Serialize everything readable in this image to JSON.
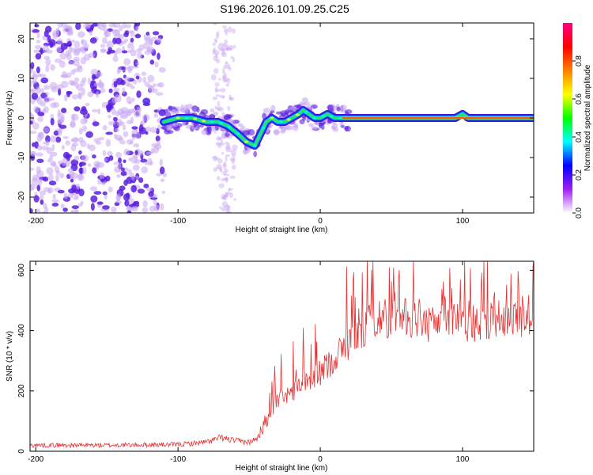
{
  "title": "S196.2026.101.09.25.C25",
  "colors": {
    "spectro_weak": "#c9a8f2",
    "spectro_strong": "#5a1fe0",
    "line": "#e53232"
  },
  "chart_data": [
    {
      "type": "heatmap",
      "name": "spectrogram",
      "xlabel": "Height of straight line (km)",
      "ylabel": "Frequency (Hz)",
      "xlim": [
        -204,
        150
      ],
      "ylim": [
        -24,
        24
      ],
      "xticks": [
        -200,
        -100,
        0,
        100
      ],
      "yticks": [
        -20,
        -10,
        0,
        10,
        20
      ],
      "ridge": {
        "x": [
          -110,
          -100,
          -90,
          -80,
          -72,
          -65,
          -58,
          -52,
          -46,
          -42,
          -38,
          -34,
          -30,
          -25,
          -20,
          -15,
          -12,
          -8,
          -4,
          0,
          5,
          10,
          15,
          20,
          40,
          60,
          80,
          95,
          100,
          104,
          120,
          140,
          150
        ],
        "y": [
          -1,
          0,
          0,
          -1,
          -1,
          -2,
          -4,
          -6,
          -7,
          -4,
          -1,
          0,
          -1,
          -1,
          0,
          1,
          2,
          1,
          0,
          0,
          1,
          0,
          0,
          0,
          0,
          0,
          0,
          0,
          1,
          0,
          0,
          0,
          0
        ]
      },
      "colorbar": {
        "label": "Normalized spectral amplitude",
        "range": [
          0,
          1
        ],
        "ticks": [
          "0.0",
          "0.2",
          "0.4",
          "0.6",
          "0.8"
        ],
        "colors": [
          "#ffffff",
          "#a020f0",
          "#0000ff",
          "#00ffff",
          "#00ff00",
          "#ffff00",
          "#ff8000",
          "#ff0000",
          "#ff0080"
        ]
      }
    },
    {
      "type": "line",
      "name": "snr",
      "xlabel": "Height of straight line (km)",
      "ylabel": "SNR (10 * v/v)",
      "xlim": [
        -204,
        150
      ],
      "ylim": [
        0,
        630
      ],
      "xticks": [
        -200,
        -100,
        0,
        100
      ],
      "yticks": [
        0,
        200,
        400,
        600
      ],
      "trend": {
        "x": [
          -204,
          -150,
          -100,
          -80,
          -70,
          -60,
          -50,
          -45,
          -40,
          -35,
          -30,
          -25,
          -20,
          -10,
          0,
          10,
          20,
          30,
          40,
          60,
          80,
          100,
          110,
          120,
          140,
          150
        ],
        "y": [
          20,
          20,
          22,
          30,
          45,
          35,
          30,
          40,
          70,
          120,
          170,
          180,
          200,
          220,
          260,
          310,
          360,
          410,
          440,
          440,
          430,
          440,
          420,
          440,
          450,
          450
        ]
      }
    }
  ]
}
